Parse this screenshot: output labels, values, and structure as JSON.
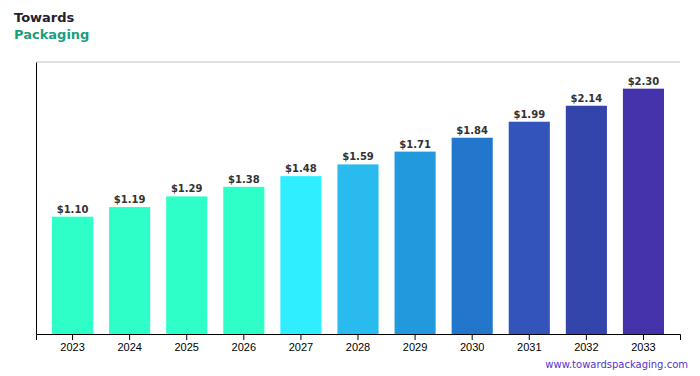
{
  "chart_data": {
    "type": "bar",
    "categories": [
      "2023",
      "2024",
      "2025",
      "2026",
      "2027",
      "2028",
      "2029",
      "2030",
      "2031",
      "2032",
      "2033"
    ],
    "values": [
      1.1,
      1.19,
      1.29,
      1.38,
      1.48,
      1.59,
      1.71,
      1.84,
      1.99,
      2.14,
      2.3
    ],
    "value_labels": [
      "$1.10",
      "$1.19",
      "$1.29",
      "$1.38",
      "$1.48",
      "$1.59",
      "$1.71",
      "$1.84",
      "$1.99",
      "$2.14",
      "$2.30"
    ],
    "colors": [
      "#2EFFC8",
      "#2EFFC8",
      "#2EFFC8",
      "#2EFFC8",
      "#2EEEFF",
      "#29BBEE",
      "#2299DD",
      "#2277CC",
      "#3355BB",
      "#3344AA",
      "#4433AA"
    ],
    "ylim": [
      0,
      2.55
    ],
    "data_labels": true,
    "tick_labels": "x",
    "annotations": [
      "Towards",
      "Packaging",
      "www.towardspackaging.com"
    ]
  }
}
